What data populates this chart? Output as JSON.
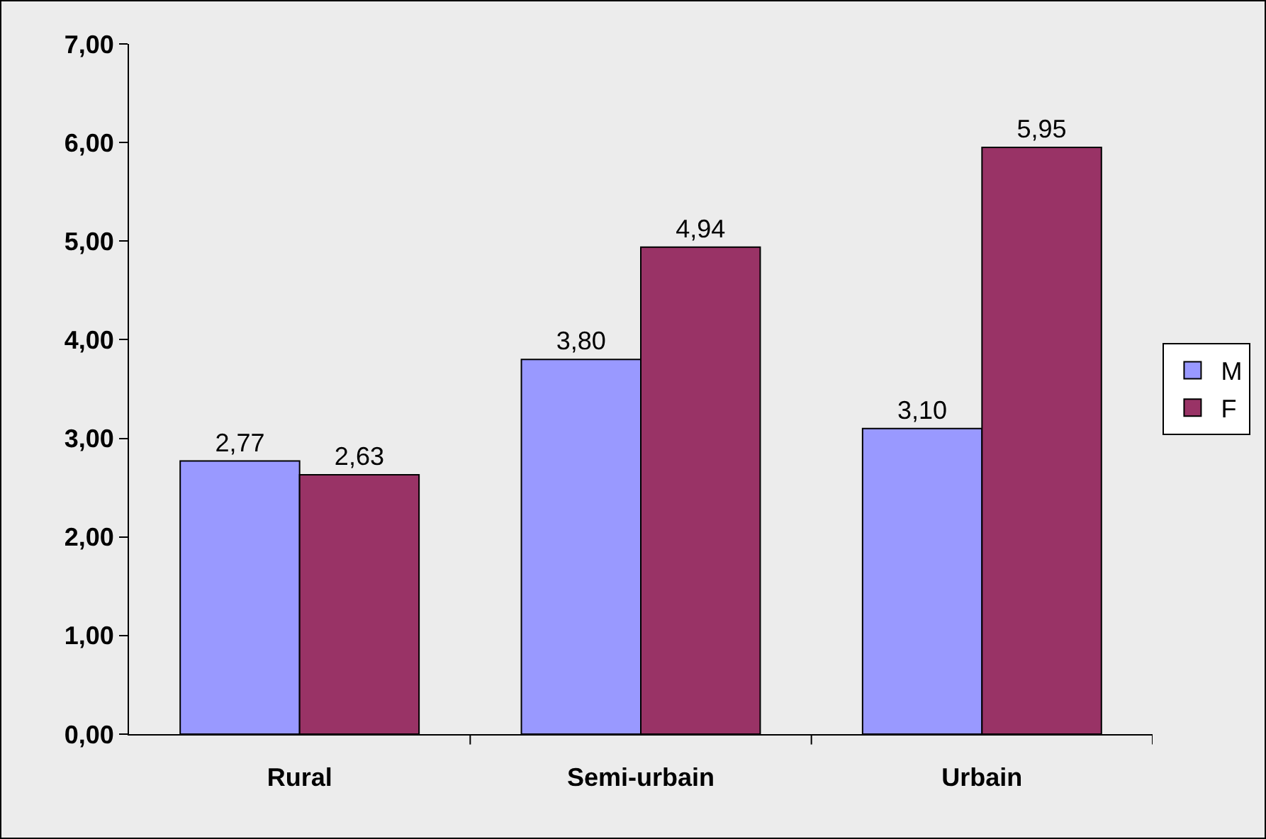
{
  "chart_data": {
    "type": "bar",
    "categories": [
      "Rural",
      "Semi-urbain",
      "Urbain"
    ],
    "series": [
      {
        "name": "M",
        "color": "#9999ff",
        "values": [
          2.77,
          3.8,
          3.1
        ],
        "value_labels": [
          "2,77",
          "3,80",
          "3,10"
        ]
      },
      {
        "name": "F",
        "color": "#993366",
        "values": [
          2.63,
          4.94,
          5.95
        ],
        "value_labels": [
          "2,63",
          "4,94",
          "5,95"
        ]
      }
    ],
    "ylim": [
      0,
      7
    ],
    "yticks": [
      {
        "value": 0,
        "label": "0,00"
      },
      {
        "value": 1,
        "label": "1,00"
      },
      {
        "value": 2,
        "label": "2,00"
      },
      {
        "value": 3,
        "label": "3,00"
      },
      {
        "value": 4,
        "label": "4,00"
      },
      {
        "value": 5,
        "label": "5,00"
      },
      {
        "value": 6,
        "label": "6,00"
      },
      {
        "value": 7,
        "label": "7,00"
      }
    ],
    "legend": "right"
  }
}
